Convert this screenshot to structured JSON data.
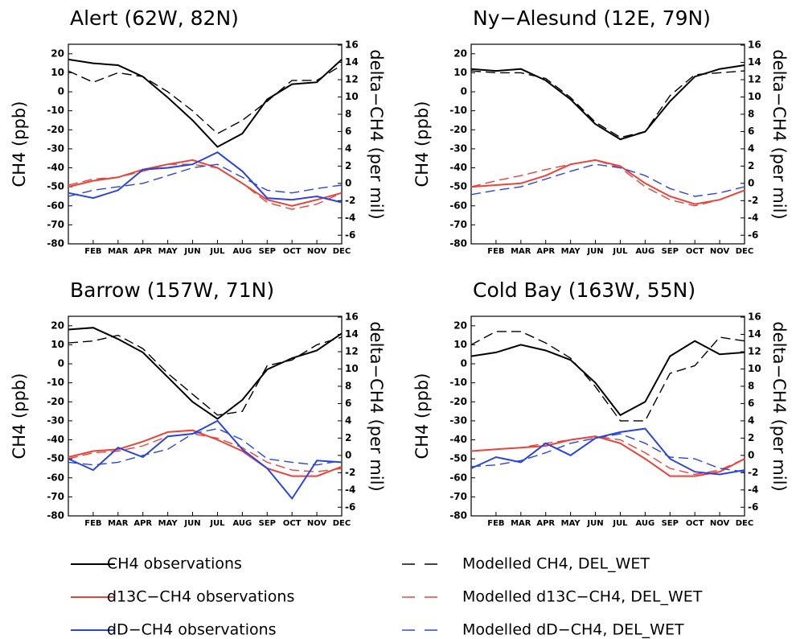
{
  "legend": [
    {
      "name": "CH4 observations"
    },
    {
      "name": "Modelled CH4, DEL_WET"
    },
    {
      "name": "d13C−CH4 observations"
    },
    {
      "name": "Modelled d13C−CH4, DEL_WET"
    },
    {
      "name": "dD−CH4 observations"
    },
    {
      "name": "Modelled dD−CH4, DEL_WET"
    }
  ],
  "chart_data": [
    {
      "type": "line",
      "title": "Alert (62W, 82N)",
      "y_label": "CH4 (ppb)",
      "y2_label": "delta−CH4 (per mil)",
      "categories": [
        null,
        "FEB",
        "MAR",
        "APR",
        "MAY",
        "JUN",
        "JUL",
        "AUG",
        "SEP",
        "OCT",
        "NOV",
        "DEC"
      ],
      "ylim": [
        -80,
        25
      ],
      "yticks": [
        20,
        10,
        0,
        -10,
        -20,
        -30,
        -40,
        -50,
        -60,
        -70,
        -80
      ],
      "y2lim": [
        -7,
        16.1
      ],
      "y2ticks": [
        16,
        14,
        12,
        10,
        8,
        6,
        4,
        2,
        0,
        -2,
        -4,
        -6
      ],
      "series": [
        {
          "color": "#000000",
          "dash": false,
          "values": [
            17,
            15,
            14,
            8,
            -3,
            -15,
            -29,
            -22,
            -4,
            4,
            5,
            17
          ]
        },
        {
          "color": "#000000",
          "dash": true,
          "values": [
            11,
            5,
            10,
            8,
            0,
            -10,
            -22,
            -15,
            -5,
            6,
            6,
            14
          ]
        },
        {
          "color": "#e8443a",
          "dash": false,
          "axis": "y2",
          "values": [
            -0.4,
            0.3,
            0.7,
            1.6,
            2.2,
            2.7,
            1.8,
            0.0,
            -1.9,
            -2.6,
            -1.9,
            -1.1
          ]
        },
        {
          "color": "#e8443a",
          "dash": true,
          "axis": "y2",
          "values": [
            -0.2,
            0.5,
            0.7,
            1.4,
            2.2,
            2.2,
            1.8,
            0.0,
            -2.2,
            -3.0,
            -2.4,
            -1.1
          ]
        },
        {
          "color": "#2a44e0",
          "dash": false,
          "axis": "y2",
          "values": [
            -1.1,
            -1.7,
            -0.8,
            1.6,
            1.8,
            2.2,
            3.6,
            1.4,
            -1.7,
            -1.9,
            -1.5,
            -2.2
          ]
        },
        {
          "color": "#2a44e0",
          "dash": true,
          "axis": "y2",
          "values": [
            -1.5,
            -0.8,
            -0.4,
            0.0,
            0.9,
            1.8,
            2.2,
            0.7,
            -0.8,
            -1.1,
            -0.6,
            -0.2
          ]
        }
      ]
    },
    {
      "type": "line",
      "title": "Ny−Alesund (12E, 79N)",
      "y_label": "CH4 (ppb)",
      "y2_label": "delta−CH4 (per mil)",
      "categories": [
        null,
        "FEB",
        "MAR",
        "APR",
        "MAY",
        "JUN",
        "JUL",
        "AUG",
        "SEP",
        "OCT",
        "NOV",
        "DEC"
      ],
      "ylim": [
        -80,
        25
      ],
      "yticks": [
        20,
        10,
        0,
        -10,
        -20,
        -30,
        -40,
        -50,
        -60,
        -70,
        -80
      ],
      "y2lim": [
        -7,
        16.1
      ],
      "y2ticks": [
        16,
        14,
        12,
        10,
        8,
        6,
        4,
        2,
        0,
        -2,
        -4,
        -6
      ],
      "series": [
        {
          "color": "#000000",
          "dash": false,
          "values": [
            12,
            11,
            12,
            6,
            -4,
            -17,
            -25,
            -21,
            -5,
            8,
            12,
            14
          ]
        },
        {
          "color": "#000000",
          "dash": true,
          "values": [
            11,
            10,
            10,
            7,
            -3,
            -16,
            -24,
            -21,
            -2,
            9,
            10,
            11
          ]
        },
        {
          "color": "#e8443a",
          "dash": false,
          "axis": "y2",
          "values": [
            -0.4,
            -0.2,
            0.0,
            0.9,
            2.2,
            2.7,
            2.0,
            0.0,
            -1.5,
            -2.4,
            -1.9,
            -0.8
          ]
        },
        {
          "color": "#e8443a",
          "dash": true,
          "axis": "y2",
          "values": [
            -0.4,
            0.3,
            0.9,
            1.6,
            2.2,
            2.7,
            1.8,
            -0.4,
            -1.9,
            -2.6,
            -1.9,
            -0.8
          ]
        },
        {
          "color": "#2a44e0",
          "dash": false,
          "axis": "y2",
          "values": [
            null,
            null,
            null,
            null,
            null,
            null,
            null,
            null,
            null,
            null,
            null,
            null
          ]
        },
        {
          "color": "#2a44e0",
          "dash": true,
          "axis": "y2",
          "values": [
            -1.3,
            -0.8,
            -0.4,
            0.5,
            1.4,
            2.2,
            1.8,
            0.9,
            -0.6,
            -1.5,
            -1.1,
            -0.4
          ]
        }
      ]
    },
    {
      "type": "line",
      "title": "Barrow (157W, 71N)",
      "y_label": "CH4 (ppb)",
      "y2_label": "delta−CH4 (per mil)",
      "categories": [
        null,
        "FEB",
        "MAR",
        "APR",
        "MAY",
        "JUN",
        "JUL",
        "AUG",
        "SEP",
        "OCT",
        "NOV",
        "DEC"
      ],
      "ylim": [
        -80,
        25
      ],
      "yticks": [
        20,
        10,
        0,
        -10,
        -20,
        -30,
        -40,
        -50,
        -60,
        -70,
        -80
      ],
      "y2lim": [
        -7,
        16.1
      ],
      "y2ticks": [
        16,
        14,
        12,
        10,
        8,
        6,
        4,
        2,
        0,
        -2,
        -4,
        -6
      ],
      "series": [
        {
          "color": "#000000",
          "dash": false,
          "values": [
            18,
            19,
            13,
            6,
            -7,
            -20,
            -29,
            -19,
            -3,
            3,
            7,
            16
          ]
        },
        {
          "color": "#000000",
          "dash": true,
          "values": [
            11,
            12,
            15,
            8,
            -5,
            -16,
            -27,
            -25,
            -1,
            2,
            10,
            14
          ]
        },
        {
          "color": "#e8443a",
          "dash": false,
          "axis": "y2",
          "values": [
            -0.2,
            0.5,
            0.7,
            1.6,
            2.7,
            2.9,
            1.8,
            0.5,
            -1.5,
            -2.4,
            -2.4,
            -1.3
          ]
        },
        {
          "color": "#e8443a",
          "dash": true,
          "axis": "y2",
          "values": [
            -0.4,
            0.3,
            0.5,
            1.1,
            2.2,
            2.5,
            2.0,
            0.9,
            -0.8,
            -1.7,
            -1.9,
            -1.5
          ]
        },
        {
          "color": "#2a44e0",
          "dash": false,
          "axis": "y2",
          "values": [
            -0.4,
            -1.7,
            0.9,
            -0.2,
            2.2,
            2.5,
            4.0,
            0.7,
            -1.5,
            -5.0,
            -0.6,
            -0.8
          ]
        },
        {
          "color": "#2a44e0",
          "dash": true,
          "axis": "y2",
          "values": [
            -0.8,
            -1.1,
            -0.8,
            0.0,
            0.7,
            2.5,
            3.1,
            1.8,
            -0.4,
            -0.8,
            -1.1,
            -0.6
          ]
        }
      ]
    },
    {
      "type": "line",
      "title": "Cold Bay (163W, 55N)",
      "y_label": "CH4 (ppb)",
      "y2_label": "delta−CH4 (per mil)",
      "categories": [
        null,
        "FEB",
        "MAR",
        "APR",
        "MAY",
        "JUN",
        "JUL",
        "AUG",
        "SEP",
        "OCT",
        "NOV",
        "DEC"
      ],
      "ylim": [
        -80,
        25
      ],
      "yticks": [
        20,
        10,
        0,
        -10,
        -20,
        -30,
        -40,
        -50,
        -60,
        -70,
        -80
      ],
      "y2lim": [
        -7,
        16.1
      ],
      "y2ticks": [
        16,
        14,
        12,
        10,
        8,
        6,
        4,
        2,
        0,
        -2,
        -4,
        -6
      ],
      "series": [
        {
          "color": "#000000",
          "dash": false,
          "values": [
            4,
            6,
            10,
            7,
            2,
            -10,
            -27,
            -20,
            4,
            12,
            5,
            6
          ]
        },
        {
          "color": "#000000",
          "dash": true,
          "values": [
            10,
            17,
            17,
            11,
            3,
            -12,
            -30,
            -30,
            -5,
            -1,
            14,
            12
          ]
        },
        {
          "color": "#e8443a",
          "dash": false,
          "axis": "y2",
          "values": [
            0.5,
            0.7,
            0.9,
            1.1,
            1.8,
            2.2,
            1.4,
            -0.4,
            -2.4,
            -2.4,
            -1.9,
            -0.4
          ]
        },
        {
          "color": "#e8443a",
          "dash": true,
          "axis": "y2",
          "values": [
            0.5,
            0.7,
            0.9,
            1.4,
            1.8,
            2.2,
            1.8,
            0.3,
            -1.5,
            -2.2,
            -1.7,
            -0.4
          ]
        },
        {
          "color": "#2a44e0",
          "dash": false,
          "axis": "y2",
          "values": [
            -1.5,
            -0.2,
            -0.8,
            1.4,
            0.0,
            2.0,
            2.7,
            3.1,
            -0.4,
            -1.9,
            -2.2,
            -1.7
          ]
        },
        {
          "color": "#2a44e0",
          "dash": true,
          "axis": "y2",
          "values": [
            -1.3,
            -1.1,
            -0.6,
            0.3,
            1.4,
            2.0,
            2.5,
            1.4,
            -0.2,
            -0.4,
            -1.5,
            -1.9
          ]
        }
      ]
    }
  ]
}
